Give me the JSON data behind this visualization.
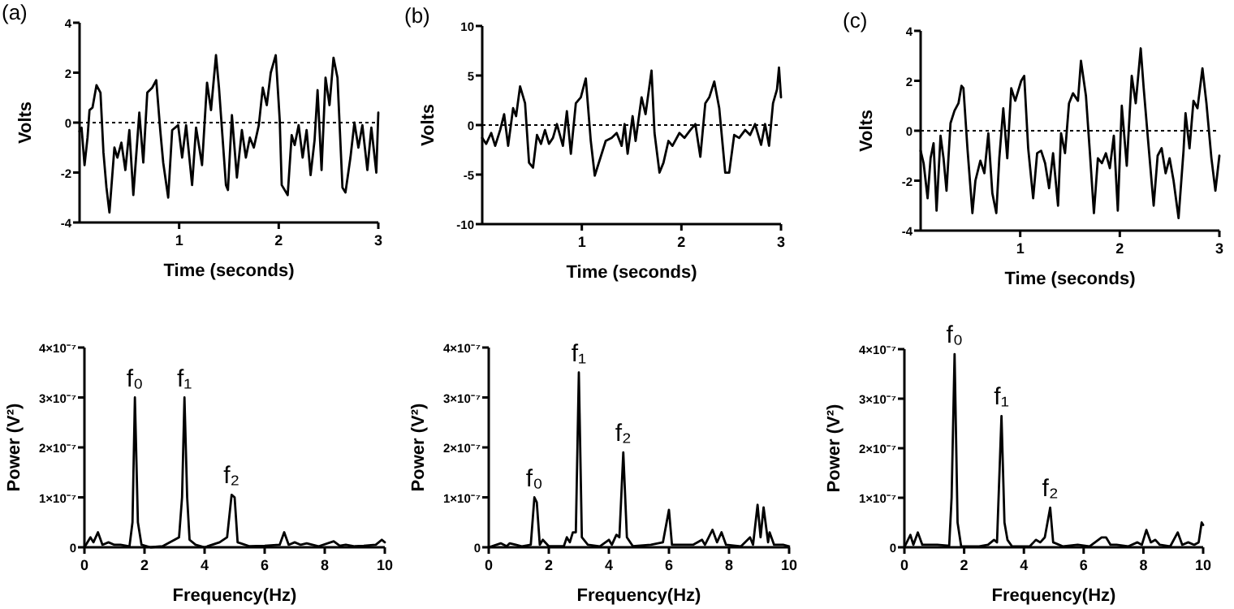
{
  "chart_data": [
    {
      "type": "line",
      "title": "(a)",
      "xlabel": "Time  (seconds)",
      "ylabel": "Volts",
      "xlim": [
        0,
        3
      ],
      "xticks": [
        1,
        2,
        3
      ],
      "ylim": [
        -4,
        4
      ],
      "yticks": [
        -4,
        -2,
        0,
        2,
        4
      ],
      "color": "#000000",
      "ref_lines": [
        {
          "axis": "y",
          "value": 0,
          "line_style": "dotted"
        }
      ],
      "x": [
        0,
        0.02,
        0.05,
        0.08,
        0.1,
        0.13,
        0.17,
        0.21,
        0.24,
        0.27,
        0.3,
        0.35,
        0.38,
        0.42,
        0.46,
        0.5,
        0.54,
        0.6,
        0.64,
        0.68,
        0.73,
        0.77,
        0.81,
        0.84,
        0.89,
        0.93,
        0.99,
        1.03,
        1.07,
        1.13,
        1.17,
        1.23,
        1.28,
        1.32,
        1.37,
        1.4,
        1.47,
        1.49,
        1.53,
        1.58,
        1.63,
        1.67,
        1.71,
        1.75,
        1.8,
        1.84,
        1.88,
        1.92,
        1.97,
        2.01,
        2.03,
        2.09,
        2.13,
        2.16,
        2.2,
        2.24,
        2.28,
        2.32,
        2.36,
        2.39,
        2.43,
        2.47,
        2.51,
        2.55,
        2.59,
        2.64,
        2.67,
        2.72,
        2.76,
        2.8,
        2.84,
        2.89,
        2.93,
        2.98,
        3.0
      ],
      "values": [
        -0.35,
        -0.2,
        -1.7,
        -0.6,
        0.5,
        0.6,
        1.5,
        1.2,
        -1.2,
        -2.6,
        -3.6,
        -1,
        -1.4,
        -0.8,
        -1.9,
        -0.3,
        -2.9,
        0.4,
        -1.6,
        1.2,
        1.4,
        1.7,
        -0.3,
        -1.6,
        -3,
        -0.3,
        -0.1,
        -1.4,
        -0.1,
        -2.5,
        -0.2,
        -1.7,
        1.6,
        0.5,
        2.7,
        1.4,
        -2.5,
        -2.7,
        0.3,
        -2.2,
        -0.3,
        -1.4,
        -0.6,
        -1,
        -0.1,
        1.4,
        0.7,
        2,
        2.7,
        0.1,
        -2.5,
        -2.9,
        -0.5,
        -0.9,
        -0.1,
        -1.4,
        -0.3,
        -2.1,
        -0.7,
        1.3,
        -1.9,
        1.8,
        0.7,
        2.6,
        1.8,
        -2.6,
        -2.8,
        -1.4,
        0,
        -1,
        -0.1,
        -1.9,
        -0.2,
        -2,
        0.4
      ]
    },
    {
      "type": "line",
      "title": "(b)",
      "xlabel": "Time  (seconds)",
      "ylabel": "Volts",
      "xlim": [
        0,
        3
      ],
      "xticks": [
        1,
        2,
        3
      ],
      "ylim": [
        -10,
        10
      ],
      "yticks": [
        -10,
        -5,
        0,
        5,
        10
      ],
      "color": "#000000",
      "ref_lines": [
        {
          "axis": "y",
          "value": 0,
          "line_style": "dotted"
        }
      ],
      "x": [
        0,
        0.04,
        0.09,
        0.13,
        0.18,
        0.22,
        0.26,
        0.31,
        0.34,
        0.38,
        0.43,
        0.47,
        0.51,
        0.55,
        0.59,
        0.63,
        0.67,
        0.71,
        0.75,
        0.81,
        0.85,
        0.89,
        0.94,
        0.99,
        1.04,
        1.09,
        1.13,
        1.19,
        1.24,
        1.3,
        1.35,
        1.4,
        1.43,
        1.46,
        1.51,
        1.54,
        1.6,
        1.64,
        1.7,
        1.73,
        1.78,
        1.82,
        1.87,
        1.91,
        1.98,
        2.03,
        2.09,
        2.14,
        2.19,
        2.24,
        2.28,
        2.33,
        2.38,
        2.44,
        2.48,
        2.53,
        2.58,
        2.64,
        2.69,
        2.74,
        2.8,
        2.84,
        2.88,
        2.92,
        2.96,
        2.98,
        3.0
      ],
      "values": [
        -1.3,
        -1.9,
        -0.8,
        -2.1,
        -0.5,
        1.1,
        -2.1,
        1.7,
        0.9,
        3.9,
        2.2,
        -3.8,
        -4.3,
        -1,
        -1.9,
        -0.5,
        -1.9,
        -1.3,
        0.1,
        -2.1,
        1.4,
        -2.9,
        2.2,
        2.8,
        4.7,
        -1.6,
        -5.1,
        -3.2,
        -1.6,
        -1.3,
        -0.8,
        -2.1,
        0.1,
        -2.9,
        0.9,
        -1.6,
        2.8,
        1.1,
        5.5,
        -0.8,
        -4.8,
        -3.8,
        -1.6,
        -2.1,
        -0.8,
        -1.3,
        -0.5,
        0.1,
        -3.2,
        2.2,
        2.8,
        4.4,
        1.7,
        -4.8,
        -4.8,
        -1,
        -1.3,
        -0.5,
        -1,
        0.1,
        -2,
        0.1,
        -2.1,
        2.2,
        3.6,
        5.8,
        2.8
      ]
    },
    {
      "type": "line",
      "title": "(c)",
      "xlabel": "Time  (seconds)",
      "ylabel": "Volts",
      "xlim": [
        0,
        3
      ],
      "xticks": [
        1,
        2,
        3
      ],
      "ylim": [
        -4,
        4
      ],
      "yticks": [
        -4,
        -2,
        0,
        2,
        4
      ],
      "color": "#000000",
      "ref_lines": [
        {
          "axis": "y",
          "value": 0,
          "line_style": "dotted"
        }
      ],
      "x": [
        0,
        0.03,
        0.07,
        0.1,
        0.13,
        0.16,
        0.2,
        0.23,
        0.26,
        0.3,
        0.34,
        0.38,
        0.41,
        0.43,
        0.47,
        0.52,
        0.55,
        0.6,
        0.64,
        0.68,
        0.72,
        0.76,
        0.79,
        0.83,
        0.87,
        0.91,
        0.95,
        1.01,
        1.04,
        1.08,
        1.13,
        1.17,
        1.21,
        1.25,
        1.29,
        1.33,
        1.38,
        1.41,
        1.45,
        1.49,
        1.53,
        1.58,
        1.61,
        1.66,
        1.7,
        1.74,
        1.78,
        1.82,
        1.86,
        1.9,
        1.94,
        1.98,
        2.02,
        2.07,
        2.12,
        2.16,
        2.21,
        2.24,
        2.28,
        2.34,
        2.38,
        2.42,
        2.46,
        2.5,
        2.54,
        2.59,
        2.64,
        2.66,
        2.7,
        2.74,
        2.78,
        2.83,
        2.87,
        2.92,
        2.96,
        3.0
      ],
      "values": [
        -0.8,
        -1.3,
        -2.7,
        -1.1,
        -0.5,
        -3.2,
        -0.2,
        -1.1,
        -2.4,
        0.3,
        0.8,
        1.1,
        1.8,
        1.7,
        -0.7,
        -3.3,
        -2,
        -1.2,
        -1.7,
        -0.1,
        -2.5,
        -3.3,
        -1.1,
        0.9,
        -1.1,
        1.7,
        1.2,
        2,
        2.2,
        -0.7,
        -2.7,
        -0.9,
        -0.8,
        -1.3,
        -2.3,
        -0.9,
        -3,
        -0.1,
        -0.9,
        1.1,
        1.5,
        1.2,
        2.8,
        1.4,
        -0.9,
        -3.3,
        -1.1,
        -1.3,
        -0.9,
        -1.5,
        -0.2,
        -3.2,
        1,
        -1.4,
        2.2,
        1.1,
        3.3,
        1.7,
        -0.2,
        -3,
        -1,
        -0.7,
        -1.7,
        -1.1,
        -2,
        -3.5,
        -0.8,
        0.7,
        -0.7,
        1.2,
        0.9,
        2.5,
        1.1,
        -1.1,
        -2.4,
        -1
      ]
    },
    {
      "type": "line",
      "xlabel": "Frequency(Hz)",
      "ylabel": "Power (V²)",
      "xlim": [
        0,
        10
      ],
      "xticks": [
        0,
        2,
        4,
        6,
        8,
        10
      ],
      "ylim": [
        0,
        4e-07
      ],
      "yticks": [
        0,
        {
          "value": 1e-07,
          "label": "1×10⁻⁷"
        },
        {
          "value": 2e-07,
          "label": "2×10⁻⁷"
        },
        {
          "value": 3e-07,
          "label": "3×10⁻⁷"
        },
        {
          "value": 4e-07,
          "label": "4×10⁻⁷"
        }
      ],
      "color": "#000000",
      "annotations": [
        {
          "text": "f₀",
          "x": 1.68,
          "y": 3e-07
        },
        {
          "text": "f₁",
          "x": 3.33,
          "y": 3e-07
        },
        {
          "text": "f₂",
          "x": 4.9,
          "y": 1.05e-07
        }
      ],
      "x": [
        0,
        0.2,
        0.3,
        0.45,
        0.6,
        0.8,
        1.0,
        1.2,
        1.5,
        1.6,
        1.68,
        1.78,
        1.9,
        2.2,
        2.6,
        3.0,
        3.15,
        3.25,
        3.33,
        3.42,
        3.5,
        3.7,
        4.0,
        4.5,
        4.75,
        4.9,
        5.0,
        5.1,
        5.5,
        6.0,
        6.5,
        6.65,
        6.8,
        7.0,
        7.2,
        7.4,
        7.8,
        8.3,
        8.5,
        8.7,
        9.0,
        9.3,
        9.7,
        9.9,
        10
      ],
      "values": [
        0,
        2e-08,
        1e-08,
        3e-08,
        5e-09,
        1e-08,
        5e-09,
        5e-09,
        2e-09,
        5e-08,
        3e-07,
        5e-08,
        5e-09,
        0,
        2e-09,
        1.5e-08,
        2e-08,
        1e-07,
        3e-07,
        1e-07,
        1.5e-08,
        5e-09,
        0,
        1e-08,
        2e-08,
        1.05e-07,
        1e-07,
        1e-08,
        2e-09,
        3e-09,
        5e-09,
        3e-08,
        5e-09,
        1e-08,
        5e-09,
        8e-09,
        2e-09,
        1.2e-08,
        3e-09,
        5e-09,
        2e-09,
        3e-09,
        5e-09,
        1.5e-08,
        1e-08
      ]
    },
    {
      "type": "line",
      "xlabel": "Frequency(Hz)",
      "ylabel": "Power (V²)",
      "xlim": [
        0,
        10
      ],
      "xticks": [
        0,
        2,
        4,
        6,
        8,
        10
      ],
      "ylim": [
        0,
        4e-07
      ],
      "yticks": [
        0,
        {
          "value": 1e-07,
          "label": "1×10⁻⁷"
        },
        {
          "value": 2e-07,
          "label": "2×10⁻⁷"
        },
        {
          "value": 3e-07,
          "label": "3×10⁻⁷"
        },
        {
          "value": 4e-07,
          "label": "4×10⁻⁷"
        }
      ],
      "color": "#000000",
      "annotations": [
        {
          "text": "f₀",
          "x": 1.52,
          "y": 1e-07
        },
        {
          "text": "f₁",
          "x": 3.0,
          "y": 3.5e-07
        },
        {
          "text": "f₂",
          "x": 4.48,
          "y": 1.9e-07
        }
      ],
      "x": [
        0,
        0.4,
        0.6,
        0.7,
        0.9,
        1.1,
        1.4,
        1.52,
        1.6,
        1.7,
        1.8,
        2.0,
        2.5,
        2.6,
        2.7,
        2.8,
        2.9,
        3.0,
        3.1,
        3.3,
        3.7,
        4.0,
        4.1,
        4.25,
        4.35,
        4.48,
        4.6,
        4.8,
        5.4,
        5.8,
        6.0,
        6.1,
        6.4,
        6.8,
        7.1,
        7.2,
        7.45,
        7.6,
        7.75,
        7.9,
        8.4,
        8.7,
        8.8,
        8.95,
        9.05,
        9.15,
        9.3,
        9.35,
        9.5,
        9.8,
        10
      ],
      "values": [
        0,
        8e-09,
        2e-09,
        8e-09,
        5e-09,
        2e-09,
        5e-09,
        1e-07,
        9e-08,
        5e-09,
        1.5e-08,
        2e-09,
        2e-09,
        2e-08,
        1e-08,
        3e-08,
        3e-08,
        3.5e-07,
        2e-08,
        5e-09,
        2e-09,
        1.5e-08,
        5e-09,
        2.5e-08,
        2e-08,
        1.9e-07,
        2e-08,
        2e-09,
        5e-09,
        1e-08,
        7.5e-08,
        5e-09,
        5e-09,
        5e-09,
        1.5e-08,
        5e-09,
        3.5e-08,
        1e-08,
        3e-08,
        5e-09,
        2e-09,
        2e-08,
        5e-09,
        8.5e-08,
        2e-08,
        8e-08,
        1e-08,
        3e-08,
        5e-09,
        5e-09,
        2e-09
      ]
    },
    {
      "type": "line",
      "xlabel": "Frequency(Hz)",
      "ylabel": "Power (V²)",
      "xlim": [
        0,
        10
      ],
      "xticks": [
        0,
        2,
        4,
        6,
        8,
        10
      ],
      "ylim": [
        0,
        4e-07
      ],
      "yticks": [
        0,
        {
          "value": 1e-07,
          "label": "1×10⁻⁷"
        },
        {
          "value": 2e-07,
          "label": "2×10⁻⁷"
        },
        {
          "value": 3e-07,
          "label": "3×10⁻⁷"
        },
        {
          "value": 4e-07,
          "label": "4×10⁻⁷"
        }
      ],
      "color": "#000000",
      "annotations": [
        {
          "text": "f₀",
          "x": 1.68,
          "y": 3.9e-07
        },
        {
          "text": "f₁",
          "x": 3.25,
          "y": 2.65e-07
        },
        {
          "text": "f₂",
          "x": 4.88,
          "y": 8e-08
        }
      ],
      "x": [
        0,
        0.2,
        0.3,
        0.45,
        0.6,
        0.9,
        1.1,
        1.5,
        1.58,
        1.68,
        1.78,
        1.9,
        2.5,
        2.8,
        3.0,
        3.1,
        3.25,
        3.35,
        3.45,
        3.6,
        4.2,
        4.4,
        4.55,
        4.7,
        4.88,
        4.98,
        5.3,
        5.8,
        6.2,
        6.6,
        6.75,
        6.9,
        7.1,
        7.5,
        7.8,
        7.95,
        8.1,
        8.25,
        8.4,
        8.55,
        8.9,
        9.15,
        9.3,
        9.5,
        9.7,
        9.85,
        9.95,
        10
      ],
      "values": [
        0,
        2.5e-08,
        5e-09,
        3e-08,
        5e-09,
        5e-09,
        5e-09,
        3e-09,
        1e-07,
        3.9e-07,
        5e-08,
        2e-09,
        2e-09,
        5e-09,
        1.5e-08,
        1e-08,
        2.65e-07,
        5e-08,
        1.5e-08,
        2e-09,
        2e-09,
        1.5e-08,
        1e-08,
        2e-08,
        8e-08,
        1e-08,
        2e-09,
        5e-09,
        2e-09,
        2e-08,
        2e-08,
        5e-09,
        5e-09,
        2e-09,
        1e-08,
        5e-09,
        3.5e-08,
        1e-08,
        1.5e-08,
        5e-09,
        2e-09,
        3e-08,
        5e-09,
        1e-08,
        5e-09,
        1e-08,
        5e-08,
        4.5e-08
      ]
    }
  ]
}
